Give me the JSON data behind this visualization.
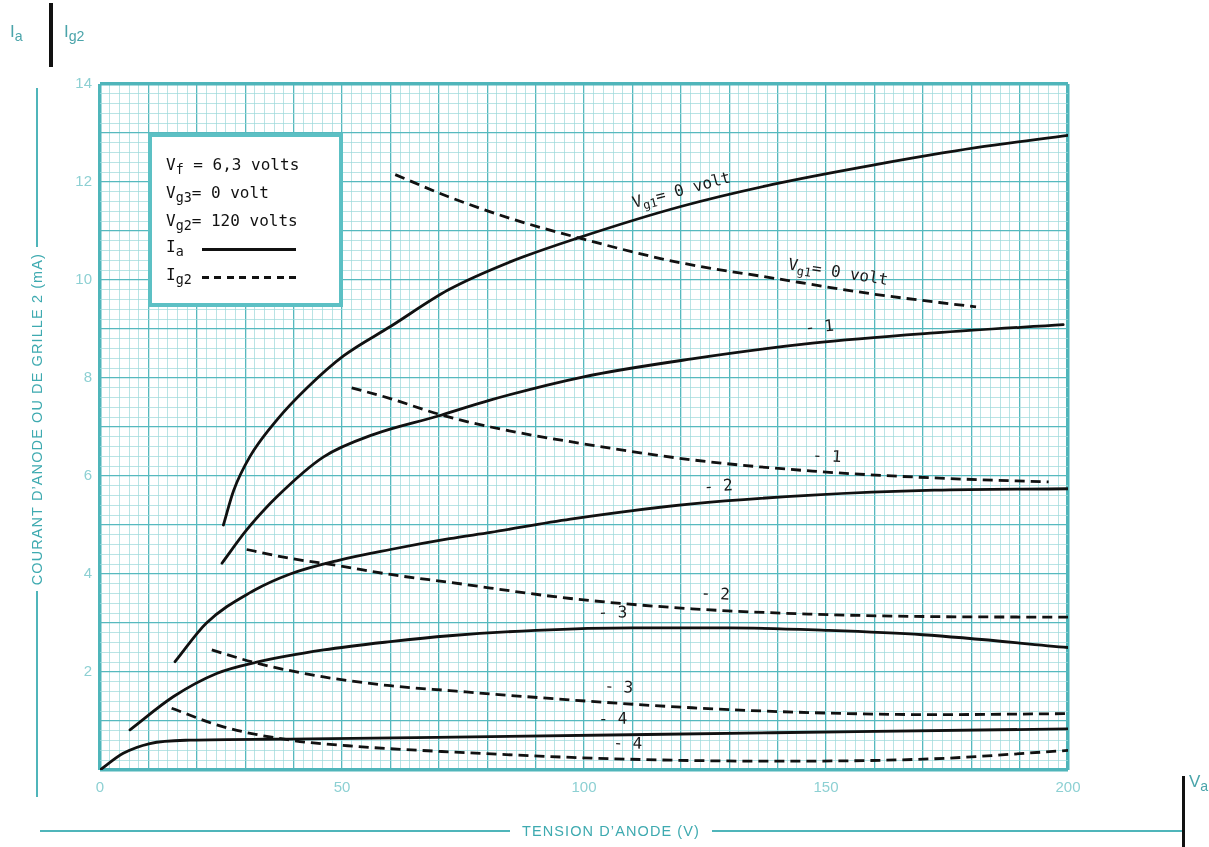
{
  "chart_data": {
    "type": "line",
    "xlabel": "TENSION D’ANODE (V)",
    "ylabel": "COURANT D’ANODE OU DE GRILLE 2 (mA)",
    "xlim": [
      0,
      200
    ],
    "ylim": [
      0,
      14
    ],
    "xticks": [
      0,
      {
        "value": 2,
        "label": null
      },
      {
        "value": 4,
        "label": null
      },
      {
        "value": 6,
        "label": null
      },
      {
        "value": 8,
        "label": null
      },
      {
        "value": 10,
        "label": null
      },
      {
        "value": 12,
        "label": null
      },
      {
        "value": 14,
        "label": null
      },
      {
        "value": 16,
        "label": null
      },
      {
        "value": 18,
        "label": null
      },
      {
        "value": 20,
        "label": null
      },
      {
        "value": 22,
        "label": null
      },
      {
        "value": 24,
        "label": null
      },
      {
        "value": 26,
        "label": null
      },
      {
        "value": 28,
        "label": null
      },
      {
        "value": 30,
        "label": null
      },
      {
        "value": 32,
        "label": null
      },
      {
        "value": 34,
        "label": null
      },
      {
        "value": 36,
        "label": null
      },
      {
        "value": 38,
        "label": null
      },
      {
        "value": 40,
        "label": null
      },
      {
        "value": 42,
        "label": null
      },
      {
        "value": 44,
        "label": null
      },
      {
        "value": 46,
        "label": null
      },
      {
        "value": 48,
        "label": null
      },
      50,
      {
        "value": 52,
        "label": null
      },
      {
        "value": 54,
        "label": null
      },
      {
        "value": 56,
        "label": null
      },
      {
        "value": 58,
        "label": null
      },
      {
        "value": 60,
        "label": null
      },
      {
        "value": 62,
        "label": null
      },
      {
        "value": 64,
        "label": null
      },
      {
        "value": 66,
        "label": null
      },
      {
        "value": 68,
        "label": null
      },
      {
        "value": 70,
        "label": null
      },
      {
        "value": 72,
        "label": null
      },
      {
        "value": 74,
        "label": null
      },
      {
        "value": 76,
        "label": null
      },
      {
        "value": 78,
        "label": null
      },
      {
        "value": 80,
        "label": null
      },
      {
        "value": 82,
        "label": null
      },
      {
        "value": 84,
        "label": null
      },
      {
        "value": 86,
        "label": null
      },
      {
        "value": 88,
        "label": null
      },
      {
        "value": 90,
        "label": null
      },
      {
        "value": 92,
        "label": null
      },
      {
        "value": 94,
        "label": null
      },
      {
        "value": 96,
        "label": null
      },
      {
        "value": 98,
        "label": null
      },
      100,
      {
        "value": 102,
        "label": null
      },
      {
        "value": 104,
        "label": null
      },
      {
        "value": 106,
        "label": null
      },
      {
        "value": 108,
        "label": null
      },
      {
        "value": 110,
        "label": null
      },
      {
        "value": 112,
        "label": null
      },
      {
        "value": 114,
        "label": null
      },
      {
        "value": 116,
        "label": null
      },
      {
        "value": 118,
        "label": null
      },
      {
        "value": 120,
        "label": null
      },
      {
        "value": 122,
        "label": null
      },
      {
        "value": 124,
        "label": null
      },
      {
        "value": 126,
        "label": null
      },
      {
        "value": 128,
        "label": null
      },
      {
        "value": 130,
        "label": null
      },
      {
        "value": 132,
        "label": null
      },
      {
        "value": 134,
        "label": null
      },
      {
        "value": 136,
        "label": null
      },
      {
        "value": 138,
        "label": null
      },
      {
        "value": 140,
        "label": null
      },
      {
        "value": 142,
        "label": null
      },
      {
        "value": 144,
        "label": null
      },
      {
        "value": 146,
        "label": null
      },
      {
        "value": 148,
        "label": null
      },
      150,
      {
        "value": 152,
        "label": null
      },
      {
        "value": 154,
        "label": null
      },
      {
        "value": 156,
        "label": null
      },
      {
        "value": 158,
        "label": null
      },
      {
        "value": 160,
        "label": null
      },
      {
        "value": 162,
        "label": null
      },
      {
        "value": 164,
        "label": null
      },
      {
        "value": 166,
        "label": null
      },
      {
        "value": 168,
        "label": null
      },
      {
        "value": 170,
        "label": null
      },
      {
        "value": 172,
        "label": null
      },
      {
        "value": 174,
        "label": null
      },
      {
        "value": 176,
        "label": null
      },
      {
        "value": 178,
        "label": null
      },
      {
        "value": 180,
        "label": null
      },
      {
        "value": 182,
        "label": null
      },
      {
        "value": 184,
        "label": null
      },
      {
        "value": 186,
        "label": null
      },
      {
        "value": 188,
        "label": null
      },
      {
        "value": 190,
        "label": null
      },
      {
        "value": 192,
        "label": null
      },
      {
        "value": 194,
        "label": null
      },
      {
        "value": 196,
        "label": null
      },
      {
        "value": 198,
        "label": null
      },
      200
    ],
    "yticks": [
      {
        "value": 0,
        "label": null
      },
      {
        "value": 0.2,
        "label": null
      },
      {
        "value": 0.4,
        "label": null
      },
      {
        "value": 0.6,
        "label": null
      },
      {
        "value": 0.8,
        "label": null
      },
      {
        "value": 1,
        "label": null
      },
      {
        "value": 1.2,
        "label": null
      },
      {
        "value": 1.4,
        "label": null
      },
      {
        "value": 1.6,
        "label": null
      },
      {
        "value": 1.8,
        "label": null
      },
      2,
      {
        "value": 2.2,
        "label": null
      },
      {
        "value": 2.4,
        "label": null
      },
      {
        "value": 2.6,
        "label": null
      },
      {
        "value": 2.8,
        "label": null
      },
      {
        "value": 3,
        "label": null
      },
      {
        "value": 3.2,
        "label": null
      },
      {
        "value": 3.4,
        "label": null
      },
      {
        "value": 3.6,
        "label": null
      },
      {
        "value": 3.8,
        "label": null
      },
      4,
      {
        "value": 4.2,
        "label": null
      },
      {
        "value": 4.4,
        "label": null
      },
      {
        "value": 4.6,
        "label": null
      },
      {
        "value": 4.8,
        "label": null
      },
      {
        "value": 5,
        "label": null
      },
      {
        "value": 5.2,
        "label": null
      },
      {
        "value": 5.4,
        "label": null
      },
      {
        "value": 5.6,
        "label": null
      },
      {
        "value": 5.8,
        "label": null
      },
      6,
      {
        "value": 6.2,
        "label": null
      },
      {
        "value": 6.4,
        "label": null
      },
      {
        "value": 6.6,
        "label": null
      },
      {
        "value": 6.8,
        "label": null
      },
      {
        "value": 7,
        "label": null
      },
      {
        "value": 7.2,
        "label": null
      },
      {
        "value": 7.4,
        "label": null
      },
      {
        "value": 7.6,
        "label": null
      },
      {
        "value": 7.8,
        "label": null
      },
      8,
      {
        "value": 8.2,
        "label": null
      },
      {
        "value": 8.4,
        "label": null
      },
      {
        "value": 8.6,
        "label": null
      },
      {
        "value": 8.8,
        "label": null
      },
      {
        "value": 9,
        "label": null
      },
      {
        "value": 9.2,
        "label": null
      },
      {
        "value": 9.4,
        "label": null
      },
      {
        "value": 9.6,
        "label": null
      },
      {
        "value": 9.8,
        "label": null
      },
      10,
      {
        "value": 10.2,
        "label": null
      },
      {
        "value": 10.4,
        "label": null
      },
      {
        "value": 10.6,
        "label": null
      },
      {
        "value": 10.8,
        "label": null
      },
      {
        "value": 11,
        "label": null
      },
      {
        "value": 11.2,
        "label": null
      },
      {
        "value": 11.4,
        "label": null
      },
      {
        "value": 11.6,
        "label": null
      },
      {
        "value": 11.8,
        "label": null
      },
      12,
      {
        "value": 12.2,
        "label": null
      },
      {
        "value": 12.4,
        "label": null
      },
      {
        "value": 12.6,
        "label": null
      },
      {
        "value": 12.8,
        "label": null
      },
      {
        "value": 13,
        "label": null
      },
      {
        "value": 13.2,
        "label": null
      },
      {
        "value": 13.4,
        "label": null
      },
      {
        "value": 13.6,
        "label": null
      },
      {
        "value": 13.8,
        "label": null
      },
      14
    ],
    "grid": true,
    "legend": "top left",
    "marker": "none",
    "series": [
      {
        "name": "I$_{a}$",
        "color": "#111111",
        "line_style": "solid",
        "x": [
          25.5,
          27.6,
          31,
          36.6,
          42.8,
          50.3,
          60,
          72,
          85,
          98.5,
          120,
          139,
          160,
          181,
          200
        ],
        "values": [
          5.0,
          5.7,
          6.4,
          7.15,
          7.8,
          8.45,
          9.05,
          9.8,
          10.38,
          10.85,
          11.5,
          11.95,
          12.35,
          12.7,
          12.95
        ]
      },
      {
        "name": "I$_{g2}$",
        "color": "#111111",
        "line_style": "dashed",
        "x": [
          61,
          72,
          85,
          98.5,
          119,
          139,
          160,
          181
        ],
        "values": [
          12.15,
          11.7,
          11.25,
          10.87,
          10.37,
          10.04,
          9.71,
          9.45
        ]
      },
      {
        "color": "#111111",
        "line_style": "solid",
        "x": [
          25.2,
          30.3,
          36.6,
          46.2,
          56.6,
          69.7,
          80.6,
          99.7,
          122.3,
          147.2,
          172.4,
          199
        ],
        "values": [
          4.22,
          4.9,
          5.58,
          6.39,
          6.85,
          7.22,
          7.55,
          8.02,
          8.39,
          8.71,
          8.92,
          9.09
        ]
      },
      {
        "color": "#111111",
        "line_style": "dashed",
        "x": [
          52,
          60,
          69.7,
          80.7,
          97.2,
          122.3,
          147.2,
          172.4,
          196
        ],
        "values": [
          7.8,
          7.58,
          7.27,
          7.0,
          6.7,
          6.33,
          6.1,
          5.96,
          5.88
        ]
      },
      {
        "color": "#111111",
        "line_style": "solid",
        "x": [
          15.5,
          22,
          31,
          39.3,
          49.3,
          60,
          72.2,
          80.7,
          97.2,
          122.3,
          147.2,
          172.4,
          200
        ],
        "values": [
          2.21,
          3.0,
          3.62,
          4.0,
          4.28,
          4.5,
          4.72,
          4.85,
          5.12,
          5.43,
          5.61,
          5.71,
          5.74
        ]
      },
      {
        "color": "#111111",
        "line_style": "dashed",
        "x": [
          30.3,
          39.3,
          49.3,
          60,
          72.2,
          97.2,
          122.3,
          147.2,
          172.4,
          200
        ],
        "values": [
          4.5,
          4.32,
          4.17,
          3.99,
          3.83,
          3.5,
          3.29,
          3.18,
          3.13,
          3.12
        ]
      },
      {
        "color": "#111111",
        "line_style": "solid",
        "x": [
          6.2,
          15.2,
          24.1,
          32.4,
          46.2,
          60,
          72.2,
          90,
          110,
          130,
          150,
          170,
          200
        ],
        "values": [
          0.82,
          1.5,
          1.97,
          2.2,
          2.45,
          2.62,
          2.74,
          2.85,
          2.9,
          2.9,
          2.85,
          2.76,
          2.5
        ]
      },
      {
        "color": "#111111",
        "line_style": "dashed",
        "x": [
          23.1,
          32.4,
          46.2,
          60,
          72.2,
          97.2,
          122.3,
          147.2,
          172.4,
          200
        ],
        "values": [
          2.45,
          2.18,
          1.9,
          1.72,
          1.62,
          1.43,
          1.27,
          1.17,
          1.13,
          1.15
        ]
      },
      {
        "color": "#111111",
        "line_style": "solid",
        "x": [
          0,
          4.8,
          10.3,
          18.6,
          39.3,
          80.7,
          139,
          200
        ],
        "values": [
          0,
          0.34,
          0.54,
          0.61,
          0.63,
          0.68,
          0.76,
          0.84
        ]
      },
      {
        "color": "#111111",
        "line_style": "dashed",
        "x": [
          14.8,
          25.5,
          39.3,
          53.1,
          72.2,
          105.6,
          139,
          172.4,
          200
        ],
        "values": [
          1.26,
          0.88,
          0.61,
          0.48,
          0.37,
          0.23,
          0.18,
          0.23,
          0.4
        ]
      }
    ],
    "annotations": [
      "V$_{f}$ = 6,3 volts",
      "V$_{g3}$= 0 volt",
      "V$_{g2}$= 120 volts",
      "I$_{a}$",
      "I$_{g2}$",
      "V$_{a}$",
      {
        "text": "V$_{g1}$= 0 volt",
        "x": 121,
        "y": 11.52
      },
      {
        "text": "V$_{g1}$= 0 volt",
        "x": 152,
        "y": 9.84
      },
      {
        "text": "- 1",
        "x": 149,
        "y": 8.72
      },
      {
        "text": "- 1",
        "x": 150,
        "y": 6.08
      },
      {
        "text": "- 2",
        "x": 128,
        "y": 5.47
      },
      {
        "text": "- 2",
        "x": 127,
        "y": 3.27
      },
      {
        "text": "- 3",
        "x": 106,
        "y": 2.89
      },
      {
        "text": "- 3",
        "x": 107,
        "y": 1.37
      },
      {
        "text": "- 4",
        "x": 106,
        "y": 0.72
      },
      {
        "text": "- 4",
        "x": 109,
        "y": 0.22
      }
    ]
  }
}
